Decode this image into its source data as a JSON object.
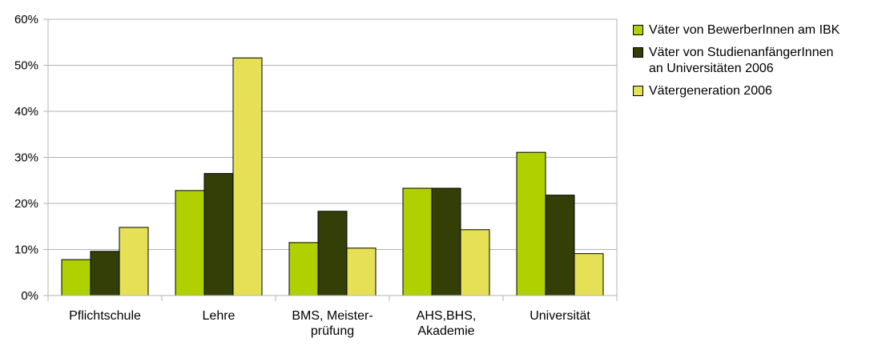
{
  "chart_data": {
    "type": "bar",
    "categories": [
      [
        "Pflichtschule"
      ],
      [
        "Lehre"
      ],
      [
        "BMS, Meister-",
        "prüfung"
      ],
      [
        "AHS,BHS,",
        "Akademie"
      ],
      [
        "Universität"
      ]
    ],
    "series": [
      {
        "name": "Väter von BewerberInnen am IBK",
        "name_lines": [
          "Väter von BewerberInnen am IBK"
        ],
        "color": "#b1d000",
        "values": [
          7.8,
          22.8,
          11.5,
          23.3,
          31.1
        ]
      },
      {
        "name": "Väter von StudienanfängerInnen an Universitäten 2006",
        "name_lines": [
          "Väter von StudienanfängerInnen",
          "an Universitäten 2006"
        ],
        "color": "#333f07",
        "values": [
          9.6,
          26.5,
          18.3,
          23.3,
          21.8
        ]
      },
      {
        "name": "Vätergeneration 2006",
        "name_lines": [
          "Vätergeneration 2006"
        ],
        "color": "#e5e055",
        "values": [
          14.8,
          51.6,
          10.3,
          14.3,
          9.1
        ]
      }
    ],
    "ylim": [
      0,
      60
    ],
    "yticks": [
      "0%",
      "10%",
      "20%",
      "30%",
      "40%",
      "50%",
      "60%"
    ],
    "grid": true,
    "legend_position": "right",
    "xlabel": "",
    "ylabel": "",
    "title": ""
  }
}
